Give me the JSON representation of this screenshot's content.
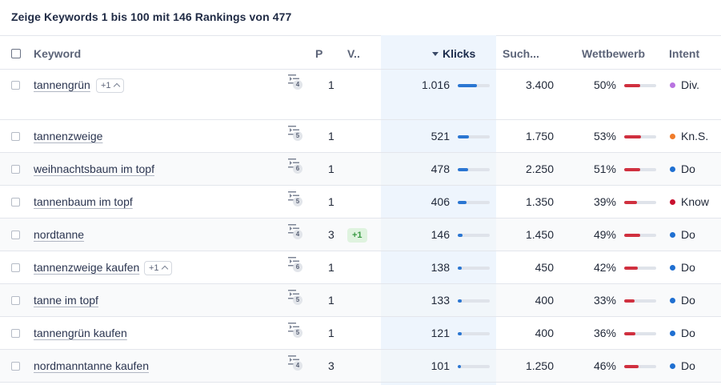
{
  "header": {
    "title": "Zeige Keywords 1 bis 100 mit 146 Rankings von 477"
  },
  "columns": {
    "keyword": "Keyword",
    "p": "P",
    "v": "V..",
    "klicks": "Klicks",
    "such": "Such...",
    "wettbewerb": "Wettbewerb",
    "intent": "Intent"
  },
  "colors": {
    "blue": "#2a76d2",
    "red": "#d0303f",
    "green": "#3a9a44",
    "klicks_bg": "#eef5fd"
  },
  "rows": [
    {
      "keyword": "tannengrün",
      "extra": "+1",
      "serp": "4",
      "pos": "1",
      "change": "",
      "clicks": "1.016",
      "clicks_share": 0.6,
      "volume": "3.400",
      "competition": "50%",
      "competition_value": 0.5,
      "intent_color": "#b873e0",
      "intent": "Div."
    },
    {
      "keyword": "tannenzweige",
      "extra": "",
      "serp": "5",
      "pos": "1",
      "change": "",
      "clicks": "521",
      "clicks_share": 0.35,
      "volume": "1.750",
      "competition": "53%",
      "competition_value": 0.53,
      "intent_color": "#f07b2a",
      "intent": "Kn.S."
    },
    {
      "keyword": "weihnachtsbaum im topf",
      "extra": "",
      "serp": "6",
      "pos": "1",
      "change": "",
      "clicks": "478",
      "clicks_share": 0.32,
      "volume": "2.250",
      "competition": "51%",
      "competition_value": 0.51,
      "intent_color": "#1f6fd1",
      "intent": "Do"
    },
    {
      "keyword": "tannenbaum im topf",
      "extra": "",
      "serp": "5",
      "pos": "1",
      "change": "",
      "clicks": "406",
      "clicks_share": 0.28,
      "volume": "1.350",
      "competition": "39%",
      "competition_value": 0.39,
      "intent_color": "#c8102e",
      "intent": "Know"
    },
    {
      "keyword": "nordtanne",
      "extra": "",
      "serp": "4",
      "pos": "3",
      "change": "+1",
      "clicks": "146",
      "clicks_share": 0.14,
      "volume": "1.450",
      "competition": "49%",
      "competition_value": 0.49,
      "intent_color": "#1f6fd1",
      "intent": "Do"
    },
    {
      "keyword": "tannenzweige kaufen",
      "extra": "+1",
      "serp": "6",
      "pos": "1",
      "change": "",
      "clicks": "138",
      "clicks_share": 0.13,
      "volume": "450",
      "competition": "42%",
      "competition_value": 0.42,
      "intent_color": "#1f6fd1",
      "intent": "Do"
    },
    {
      "keyword": "tanne im topf",
      "extra": "",
      "serp": "5",
      "pos": "1",
      "change": "",
      "clicks": "133",
      "clicks_share": 0.13,
      "volume": "400",
      "competition": "33%",
      "competition_value": 0.33,
      "intent_color": "#1f6fd1",
      "intent": "Do"
    },
    {
      "keyword": "tannengrün kaufen",
      "extra": "",
      "serp": "5",
      "pos": "1",
      "change": "",
      "clicks": "121",
      "clicks_share": 0.12,
      "volume": "400",
      "competition": "36%",
      "competition_value": 0.36,
      "intent_color": "#1f6fd1",
      "intent": "Do"
    },
    {
      "keyword": "nordmanntanne kaufen",
      "extra": "",
      "serp": "4",
      "pos": "3",
      "change": "",
      "clicks": "101",
      "clicks_share": 0.1,
      "volume": "1.250",
      "competition": "46%",
      "competition_value": 0.46,
      "intent_color": "#1f6fd1",
      "intent": "Do"
    }
  ]
}
